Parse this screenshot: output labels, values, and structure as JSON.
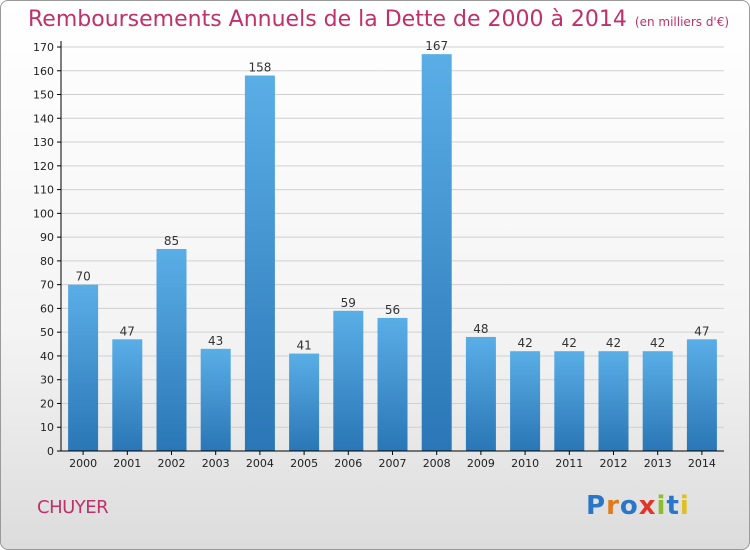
{
  "commune": "CHUYER",
  "logo": "Proxiti",
  "colors": {
    "title": "#c0306a",
    "bar_top": "#5aaee6",
    "bar_bottom": "#2a76b6",
    "grid": "#d0d0d0",
    "axis": "#000000"
  },
  "chart_data": {
    "type": "bar",
    "title": "Remboursements Annuels de la Dette de 2000 à 2014",
    "unit": "(en milliers d'€)",
    "categories": [
      "2000",
      "2001",
      "2002",
      "2003",
      "2004",
      "2005",
      "2006",
      "2007",
      "2008",
      "2009",
      "2010",
      "2011",
      "2012",
      "2013",
      "2014"
    ],
    "values": [
      70,
      47,
      85,
      43,
      158,
      41,
      59,
      56,
      167,
      48,
      42,
      42,
      42,
      42,
      47
    ],
    "ylim": [
      0,
      170
    ],
    "yticks": [
      0,
      10,
      20,
      30,
      40,
      50,
      60,
      70,
      80,
      90,
      100,
      110,
      120,
      130,
      140,
      150,
      160,
      170
    ],
    "grid": true,
    "data_labels": true
  }
}
